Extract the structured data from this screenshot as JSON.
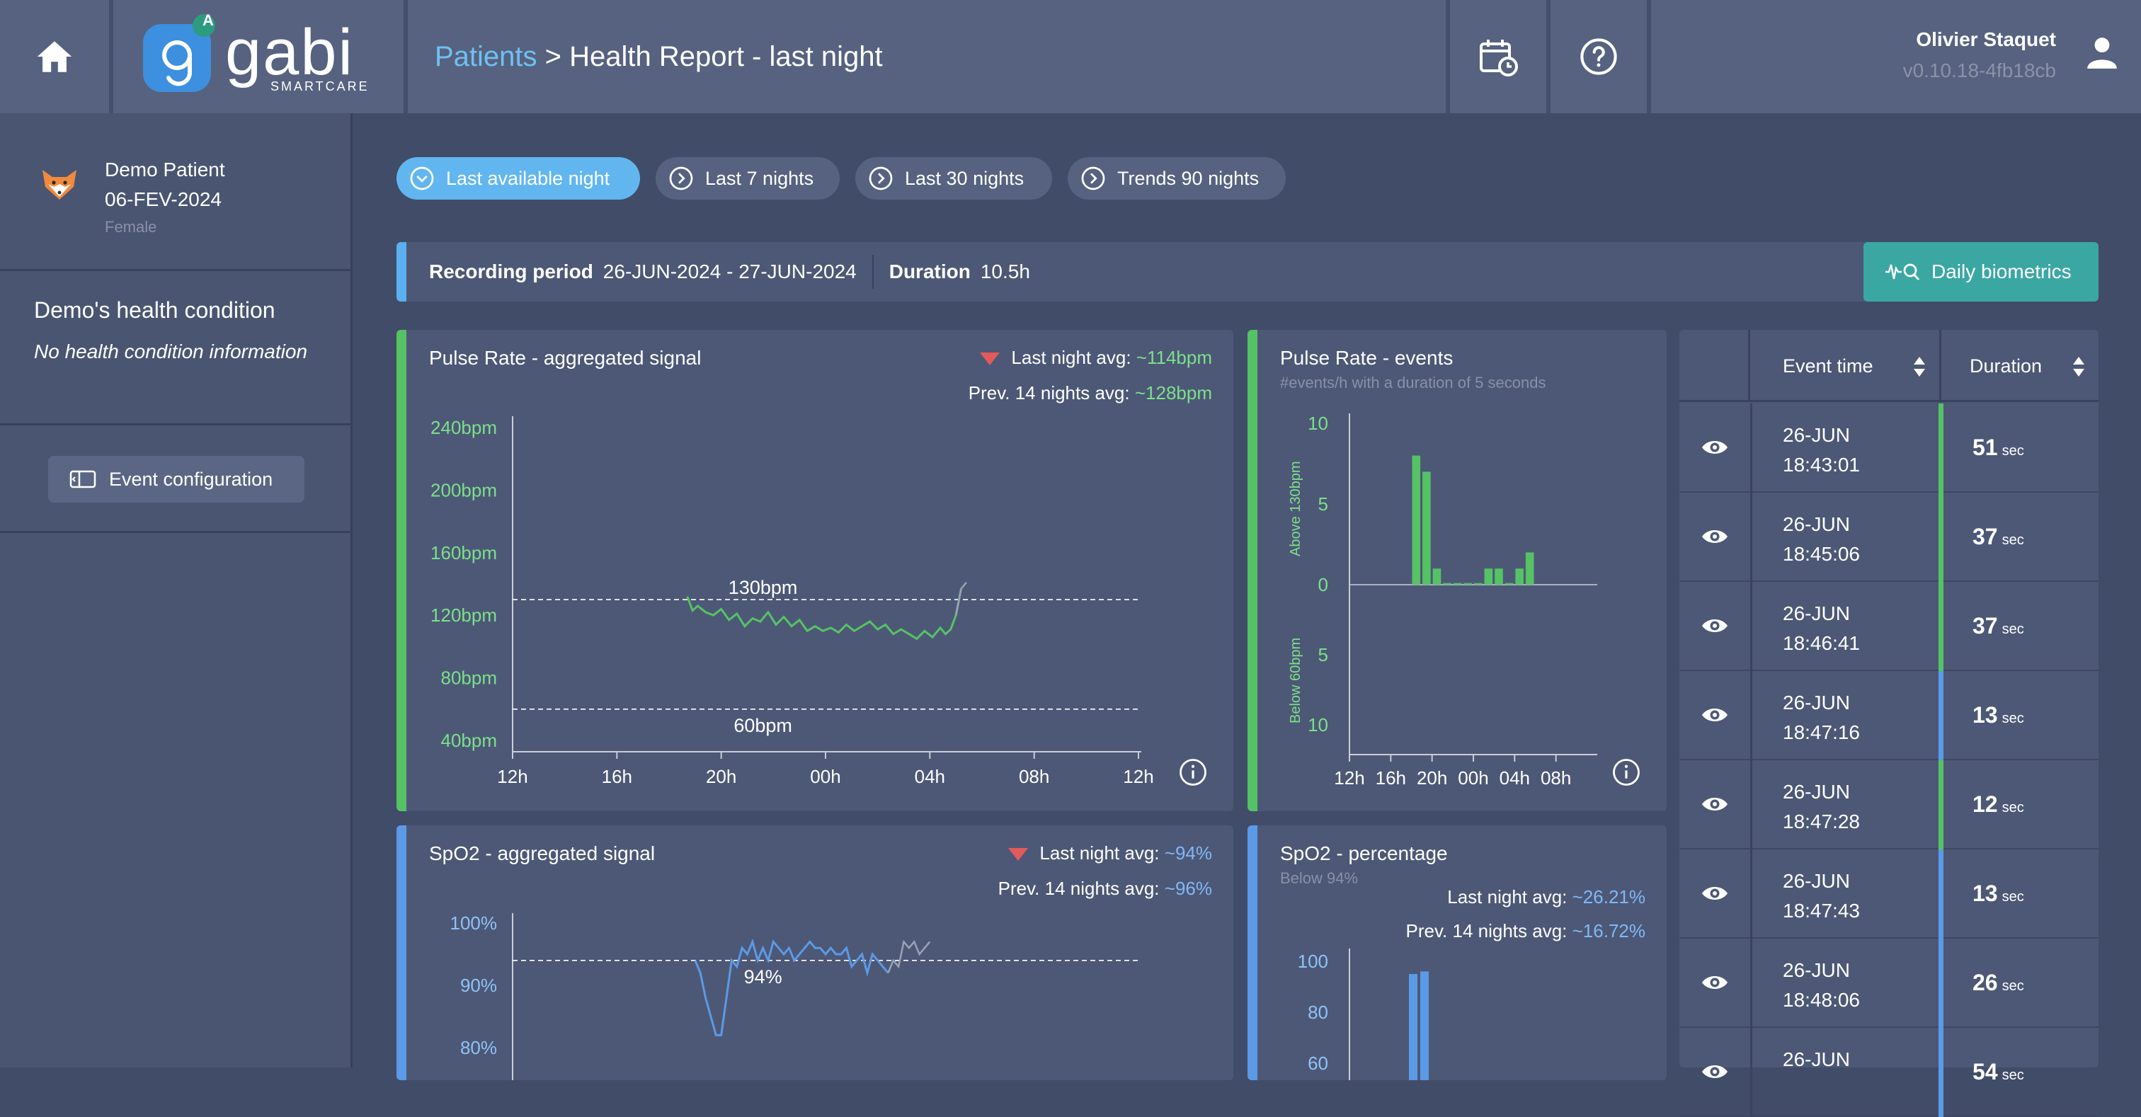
{
  "header": {
    "logo_text": "gabi",
    "logo_sub": "SMARTCARE",
    "logo_badge": "A",
    "breadcrumb_link": "Patients",
    "breadcrumb_sep": ">",
    "breadcrumb_current": "Health Report - last night",
    "user_name": "Olivier Staquet",
    "version": "v0.10.18-4fb18cb",
    "icons": [
      "home-icon",
      "calendar-clock-icon",
      "help-icon",
      "user-icon"
    ]
  },
  "patient": {
    "name": "Demo Patient",
    "dob": "06-FEV-2024",
    "sex": "Female"
  },
  "health": {
    "title": "Demo's health condition",
    "info": "No health condition information"
  },
  "event_config_label": "Event configuration",
  "periods": [
    {
      "label": "Last available night",
      "active": true
    },
    {
      "label": "Last 7 nights",
      "active": false
    },
    {
      "label": "Last 30 nights",
      "active": false
    },
    {
      "label": "Trends 90 nights",
      "active": false
    }
  ],
  "recording": {
    "period_label": "Recording period",
    "period_value": "26-JUN-2024 - 27-JUN-2024",
    "duration_label": "Duration",
    "duration_value": "10.5h",
    "biometrics_button": "Daily biometrics"
  },
  "pulse_signal": {
    "title": "Pulse Rate - aggregated signal",
    "last_avg_label": "Last night avg:",
    "last_avg_value": "~114bpm",
    "prev_avg_label": "Prev. 14 nights avg:",
    "prev_avg_value": "~128bpm",
    "colors": {
      "line": "#56c266",
      "label": "#7be08a"
    }
  },
  "pulse_events": {
    "title": "Pulse Rate - events",
    "subtitle": "#events/h with a duration of 5 seconds",
    "colors": {
      "bar": "#56c266"
    }
  },
  "spo2_signal": {
    "title": "SpO2 - aggregated signal",
    "last_avg_label": "Last night avg:",
    "last_avg_value": "~94%",
    "prev_avg_label": "Prev. 14 nights avg:",
    "prev_avg_value": "~96%",
    "colors": {
      "line": "#5b9ae6",
      "label": "#8ec2f7"
    }
  },
  "spo2_percentage": {
    "title": "SpO2 - percentage",
    "subtitle": "Below 94%",
    "last_avg_label": "Last night avg:",
    "last_avg_value": "~26.21%",
    "prev_avg_label": "Prev. 14 nights avg:",
    "prev_avg_value": "~16.72%"
  },
  "events_table": {
    "col_time": "Event time",
    "col_duration": "Duration",
    "unit": "sec",
    "rows": [
      {
        "date": "26-JUN",
        "time": "18:43:01",
        "duration": "51",
        "type": "pulse"
      },
      {
        "date": "26-JUN",
        "time": "18:45:06",
        "duration": "37",
        "type": "pulse"
      },
      {
        "date": "26-JUN",
        "time": "18:46:41",
        "duration": "37",
        "type": "pulse"
      },
      {
        "date": "26-JUN",
        "time": "18:47:16",
        "duration": "13",
        "type": "spo2"
      },
      {
        "date": "26-JUN",
        "time": "18:47:28",
        "duration": "12",
        "type": "pulse"
      },
      {
        "date": "26-JUN",
        "time": "18:47:43",
        "duration": "13",
        "type": "spo2"
      },
      {
        "date": "26-JUN",
        "time": "18:48:06",
        "duration": "26",
        "type": "spo2"
      },
      {
        "date": "26-JUN",
        "time": "",
        "duration": "54",
        "type": "spo2"
      }
    ],
    "colors": {
      "pulse": "#56c266",
      "spo2": "#5b9ae6"
    }
  },
  "chart_data": [
    {
      "type": "line",
      "title": "Pulse Rate - aggregated signal",
      "x_ticks": [
        "12h",
        "16h",
        "20h",
        "00h",
        "04h",
        "08h",
        "12h"
      ],
      "y_ticks": [
        "240bpm",
        "200bpm",
        "160bpm",
        "120bpm",
        "80bpm",
        "40bpm"
      ],
      "ylim": [
        40,
        240
      ],
      "thresholds": [
        {
          "value": 130,
          "label": "130bpm"
        },
        {
          "value": 60,
          "label": "60bpm"
        }
      ],
      "x_hours": [
        18.7,
        18.9,
        19.1,
        19.4,
        19.7,
        20.0,
        20.3,
        20.6,
        20.9,
        21.2,
        21.5,
        21.8,
        22.1,
        22.4,
        22.7,
        23.0,
        23.3,
        23.6,
        23.9,
        24.2,
        24.5,
        24.8,
        25.1,
        25.4,
        25.7,
        26.0,
        26.3,
        26.6,
        26.9,
        27.2,
        27.5,
        27.8,
        28.1,
        28.4,
        28.6,
        28.8,
        29.0,
        29.2
      ],
      "y_bpm": [
        132,
        123,
        126,
        122,
        120,
        124,
        117,
        121,
        113,
        118,
        116,
        122,
        114,
        119,
        113,
        117,
        110,
        113,
        110,
        112,
        109,
        114,
        110,
        113,
        116,
        111,
        114,
        108,
        111,
        108,
        105,
        110,
        106,
        112,
        108,
        111,
        120,
        137
      ],
      "trailing_segment": {
        "x_hours": [
          29.0,
          29.2,
          29.4
        ],
        "y_bpm": [
          120,
          137,
          141
        ]
      },
      "series": [
        {
          "name": "Pulse Rate"
        }
      ]
    },
    {
      "type": "bar",
      "title": "Pulse Rate - events",
      "x_ticks": [
        "12h",
        "16h",
        "20h",
        "00h",
        "04h",
        "08h"
      ],
      "upper_label": "Above 130bpm",
      "lower_label": "Below 60bpm",
      "y_ticks_upper": [
        10,
        5,
        0
      ],
      "y_ticks_lower": [
        5,
        10
      ],
      "ylim": [
        0,
        10
      ],
      "x_hours": [
        18,
        19,
        20,
        21,
        22,
        23,
        24,
        25,
        26,
        27,
        28,
        29
      ],
      "values_above": [
        8,
        7,
        1,
        0.1,
        0.1,
        0.1,
        0.1,
        1,
        1,
        0.1,
        1,
        2
      ],
      "values_below": [
        0,
        0,
        0,
        0,
        0,
        0,
        0,
        0,
        0,
        0,
        0,
        0
      ]
    },
    {
      "type": "line",
      "title": "SpO2 - aggregated signal",
      "y_ticks": [
        "100%",
        "90%",
        "80%"
      ],
      "ylim": [
        70,
        100
      ],
      "thresholds": [
        {
          "value": 94,
          "label": "94%"
        }
      ],
      "x_hours": [
        19.0,
        19.2,
        19.4,
        19.6,
        19.8,
        20.0,
        20.2,
        20.4,
        20.6,
        20.8,
        21.0,
        21.2,
        21.4,
        21.6,
        21.8,
        22.0,
        22.2,
        22.4,
        22.6,
        22.8,
        23.0,
        23.2,
        23.4,
        23.6,
        23.8,
        24.0,
        24.2,
        24.4,
        24.6,
        24.8,
        25.0,
        25.2,
        25.4,
        25.6,
        25.8,
        26.0,
        26.2,
        26.4
      ],
      "y_pct": [
        94,
        92,
        88,
        85,
        82,
        82,
        88,
        94,
        93,
        96,
        95,
        97,
        94,
        96,
        94,
        97,
        96,
        95,
        96,
        94,
        95,
        96,
        97,
        96,
        96,
        95,
        96,
        95,
        95,
        96,
        93,
        94,
        95,
        92,
        95,
        94,
        93,
        92
      ],
      "trailing_segment": {
        "x_hours": [
          26.4,
          26.6,
          26.8,
          27.0,
          27.2,
          27.4,
          27.6,
          27.8,
          28.0
        ],
        "y_pct": [
          92,
          94,
          93,
          97,
          96,
          97,
          95,
          96,
          97
        ]
      },
      "series": [
        {
          "name": "SpO2"
        }
      ]
    },
    {
      "type": "bar",
      "title": "SpO2 - percentage",
      "y_ticks": [
        100,
        80,
        60
      ],
      "ylim": [
        0,
        100
      ],
      "values": [
        95,
        96
      ]
    }
  ]
}
